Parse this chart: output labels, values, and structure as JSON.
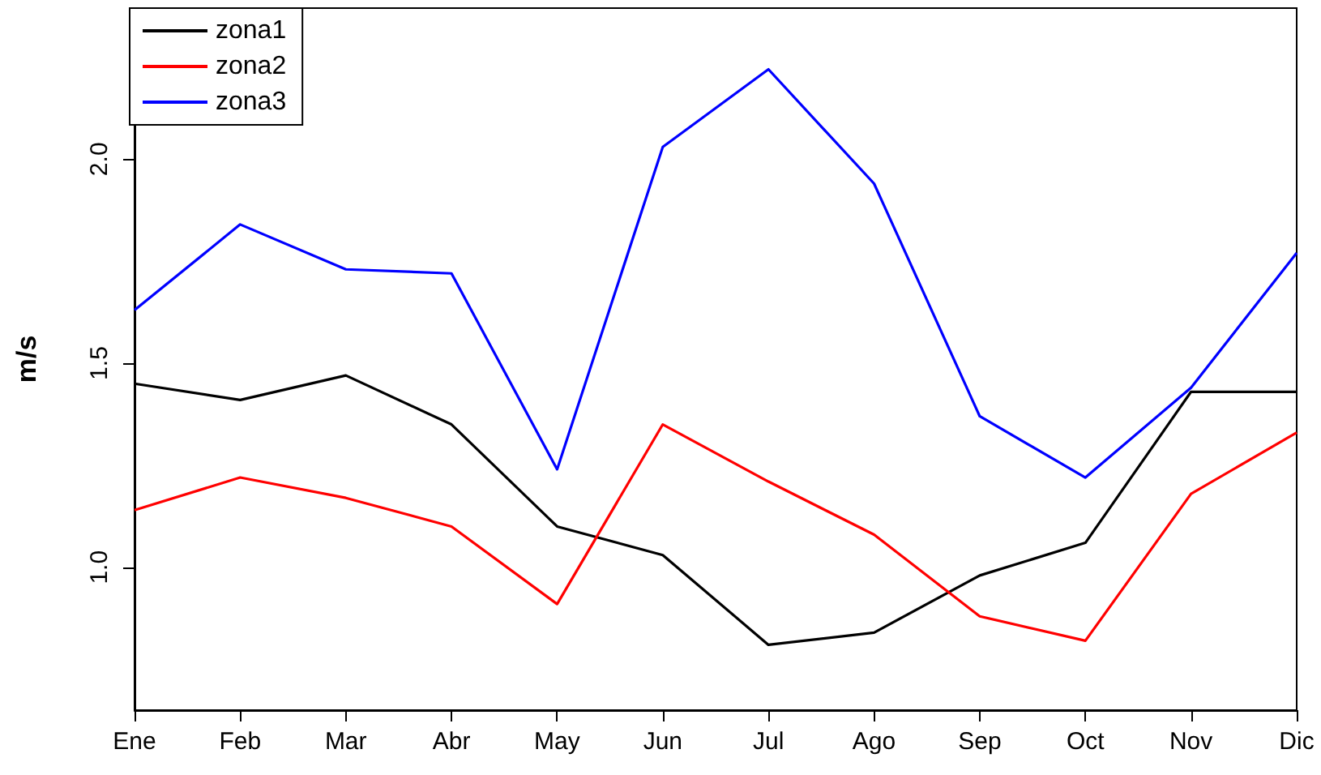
{
  "chart_data": {
    "type": "line",
    "ylabel": "m/s",
    "categories": [
      "Ene",
      "Feb",
      "Mar",
      "Abr",
      "May",
      "Jun",
      "Jul",
      "Ago",
      "Sep",
      "Oct",
      "Nov",
      "Dic"
    ],
    "series": [
      {
        "name": "zona1",
        "color": "#000000",
        "values": [
          1.45,
          1.41,
          1.47,
          1.35,
          1.1,
          1.03,
          0.81,
          0.84,
          0.98,
          1.06,
          1.43,
          1.43
        ]
      },
      {
        "name": "zona2",
        "color": "#ff0000",
        "values": [
          1.14,
          1.22,
          1.17,
          1.1,
          0.91,
          1.35,
          1.21,
          1.08,
          0.88,
          0.82,
          1.18,
          1.33
        ]
      },
      {
        "name": "zona3",
        "color": "#0000ff",
        "values": [
          1.63,
          1.84,
          1.73,
          1.72,
          1.24,
          2.03,
          2.22,
          1.94,
          1.37,
          1.22,
          1.44,
          1.77
        ]
      }
    ],
    "ylim": [
      0.65,
      2.37
    ],
    "yticks": [
      {
        "value": 1.0,
        "label": "1.0"
      },
      {
        "value": 1.5,
        "label": "1.5"
      },
      {
        "value": 2.0,
        "label": "2.0"
      }
    ],
    "grid": false,
    "legend": "top left",
    "marker": "none",
    "line_style": "solid"
  }
}
